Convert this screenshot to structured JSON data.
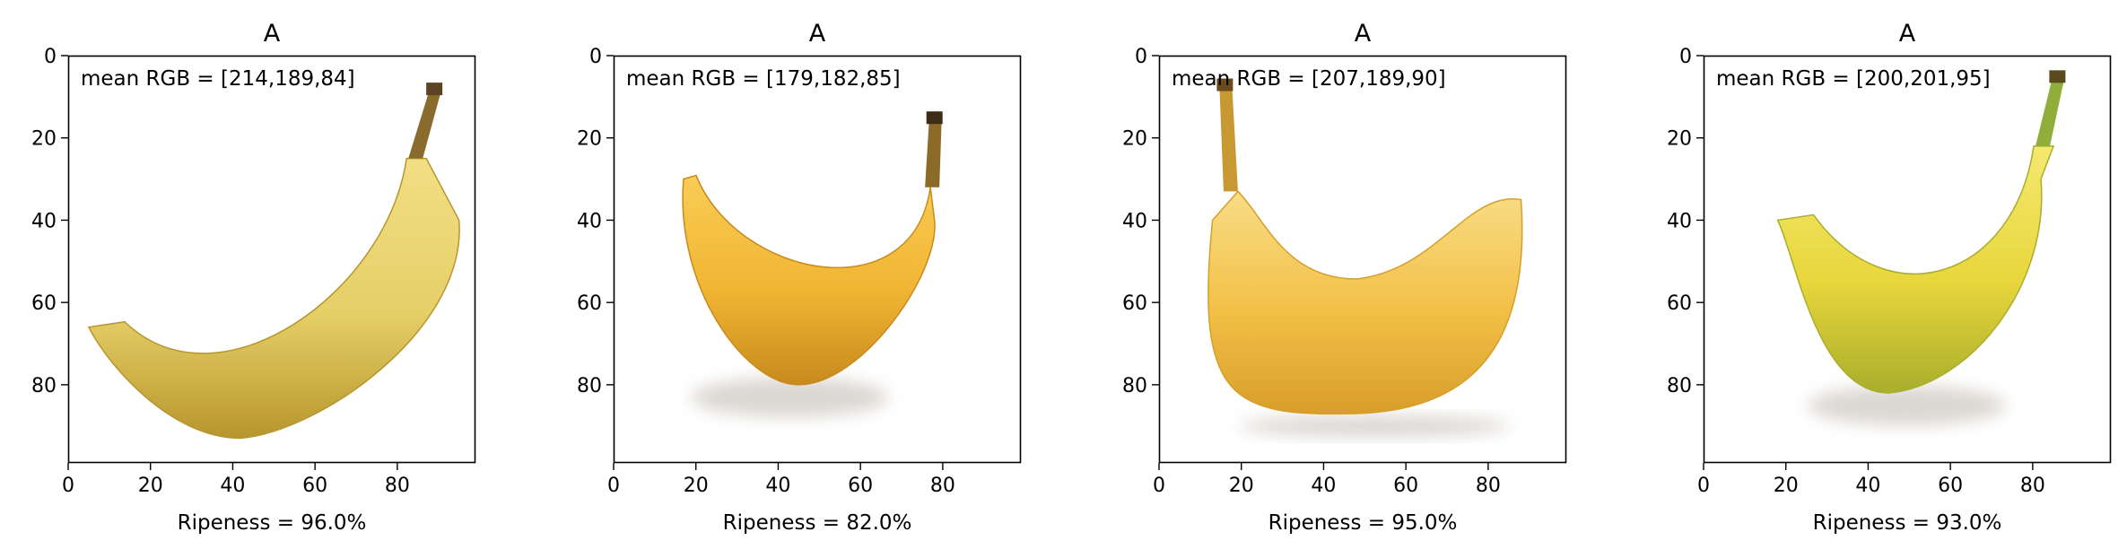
{
  "chart_data": [
    {
      "type": "image",
      "title": "A",
      "annotation": "mean RGB = [214,189,84]",
      "xlabel": "Ripeness = 96.0%",
      "xlim": [
        0,
        99
      ],
      "ylim": [
        99,
        0
      ],
      "xticks": [
        0,
        20,
        40,
        60,
        80
      ],
      "yticks": [
        0,
        20,
        40,
        60,
        80
      ],
      "mean_rgb": [
        214,
        189,
        84
      ],
      "ripeness_percent": 96.0,
      "background": "#ffffff",
      "banana": {
        "shape": "smile",
        "tip": [
          89,
          7
        ],
        "stem_base": [
          84,
          25
        ],
        "right_top": [
          95,
          40
        ],
        "belly": [
          42,
          93
        ],
        "left_end": [
          5,
          66
        ],
        "has_shadow": false,
        "colors": {
          "body": "#e6cf68",
          "light": "#f2df85",
          "dark": "#b7962d",
          "stem": "#8a6b2e",
          "tip": "#5b4324"
        }
      }
    },
    {
      "type": "image",
      "title": "A",
      "annotation": "mean RGB = [179,182,85]",
      "xlabel": "Ripeness = 82.0%",
      "xlim": [
        0,
        99
      ],
      "ylim": [
        99,
        0
      ],
      "xticks": [
        0,
        20,
        40,
        60,
        80
      ],
      "yticks": [
        0,
        20,
        40,
        60,
        80
      ],
      "mean_rgb": [
        179,
        182,
        85
      ],
      "ripeness_percent": 82.0,
      "background": "#ffffff",
      "banana": {
        "shape": "crescent",
        "tip": [
          78,
          14
        ],
        "stem_base": [
          77,
          32
        ],
        "right_top": [
          78,
          40
        ],
        "belly": [
          45,
          80
        ],
        "left_end": [
          17,
          30
        ],
        "has_shadow": true,
        "colors": {
          "body": "#f1b533",
          "light": "#f9cc55",
          "dark": "#c88a1d",
          "stem": "#8c6a28",
          "tip": "#3e2b15"
        }
      }
    },
    {
      "type": "image",
      "title": "A",
      "annotation": "mean RGB = [207,189,90]",
      "xlabel": "Ripeness = 95.0%",
      "xlim": [
        0,
        99
      ],
      "ylim": [
        99,
        0
      ],
      "xticks": [
        0,
        20,
        40,
        60,
        80
      ],
      "yticks": [
        0,
        20,
        40,
        60,
        80
      ],
      "mean_rgb": [
        207,
        189,
        90
      ],
      "ripeness_percent": 95.0,
      "background": "#ffffff",
      "banana": {
        "shape": "u-shape",
        "tip": [
          16,
          6
        ],
        "stem_base": [
          17,
          33
        ],
        "right_top": [
          88,
          35
        ],
        "belly": [
          48,
          87
        ],
        "left_end": [
          13,
          40
        ],
        "has_shadow": true,
        "colors": {
          "body": "#f2bf45",
          "light": "#f8dd86",
          "dark": "#d79e2a",
          "stem": "#c89932",
          "tip": "#6b4a20"
        }
      }
    },
    {
      "type": "image",
      "title": "A",
      "annotation": "mean RGB = [200,201,95]",
      "xlabel": "Ripeness = 93.0%",
      "xlim": [
        0,
        99
      ],
      "ylim": [
        99,
        0
      ],
      "xticks": [
        0,
        20,
        40,
        60,
        80
      ],
      "yticks": [
        0,
        20,
        40,
        60,
        80
      ],
      "mean_rgb": [
        200,
        201,
        95
      ],
      "ripeness_percent": 93.0,
      "background": "#ffffff",
      "banana": {
        "shape": "smile",
        "tip": [
          86,
          4
        ],
        "stem_base": [
          82,
          22
        ],
        "right_top": [
          82,
          30
        ],
        "belly": [
          45,
          82
        ],
        "left_end": [
          18,
          40
        ],
        "has_shadow": true,
        "colors": {
          "body": "#e8d63c",
          "light": "#f5e870",
          "dark": "#a9ae2c",
          "stem": "#8fae3a",
          "tip": "#5a4a1c"
        }
      }
    }
  ]
}
